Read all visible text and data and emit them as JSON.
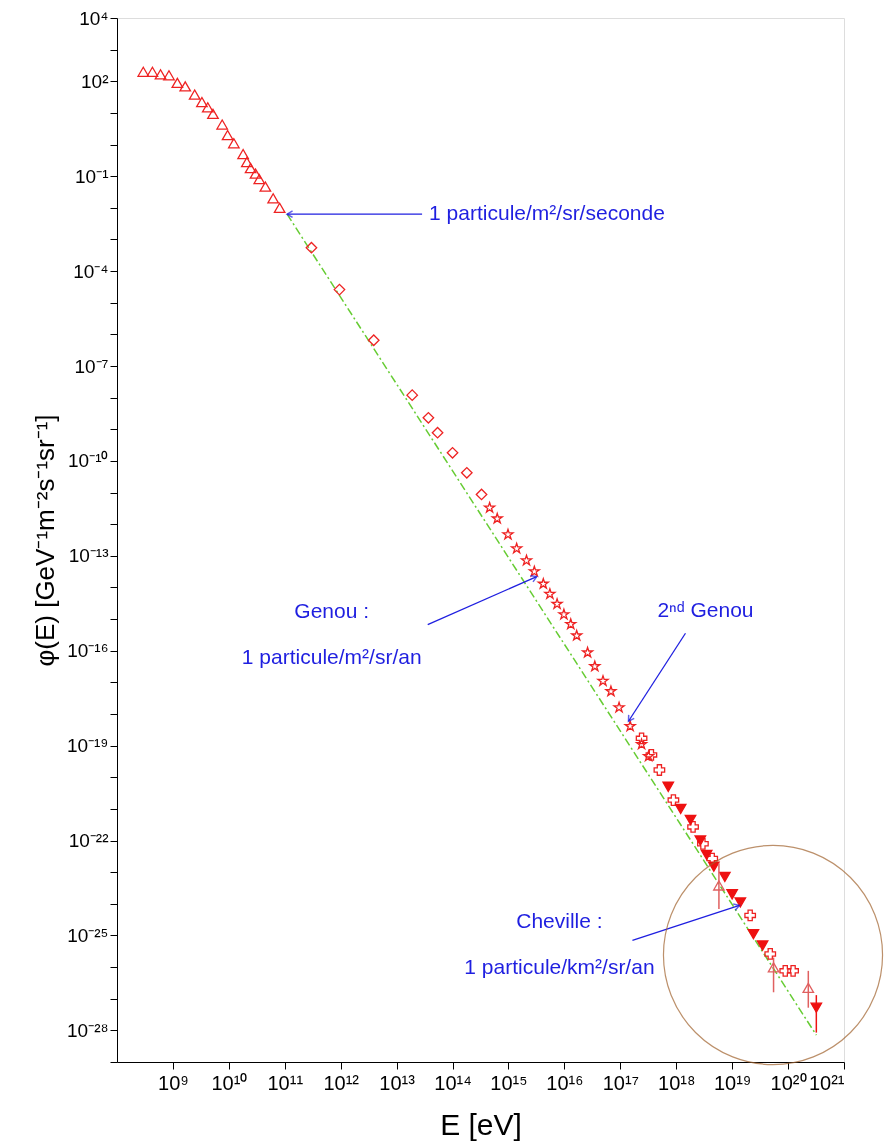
{
  "chart_data": {
    "type": "scatter",
    "xlabel": "E [eV]",
    "ylabel": "φ(E) [GeV⁻¹m⁻²s⁻¹sr⁻¹]",
    "log": "xy",
    "grid": false,
    "xlim": [
      100000000.0,
      1e+21
    ],
    "ylim": [
      1e-29,
      10000.0
    ],
    "xticks": [
      {
        "value": 1000000000.0,
        "label": "10⁹"
      },
      {
        "value": 10000000000.0,
        "label": "10¹⁰"
      },
      {
        "value": 100000000000.0,
        "label": "10¹¹"
      },
      {
        "value": 1000000000000.0,
        "label": "10¹²"
      },
      {
        "value": 10000000000000.0,
        "label": "10¹³"
      },
      {
        "value": 100000000000000.0,
        "label": "10¹⁴"
      },
      {
        "value": 1000000000000000.0,
        "label": "10¹⁵"
      },
      {
        "value": 1e+16,
        "label": "10¹⁶"
      },
      {
        "value": 1e+17,
        "label": "10¹⁷"
      },
      {
        "value": 1e+18,
        "label": "10¹⁸"
      },
      {
        "value": 1e+19,
        "label": "10¹⁹"
      },
      {
        "value": 1e+20,
        "label": "10²⁰"
      },
      {
        "value": 1e+21,
        "label": "10²¹"
      }
    ],
    "yticks": [
      {
        "value": 10000.0,
        "label": "10⁴"
      },
      {
        "value": 1000.0,
        "label": null
      },
      {
        "value": 100.0,
        "label": "10²"
      },
      {
        "value": 10.0,
        "label": null
      },
      {
        "value": 1,
        "label": null
      },
      {
        "value": 0.1,
        "label": "10⁻¹"
      },
      {
        "value": 0.01,
        "label": null
      },
      {
        "value": 0.001,
        "label": null
      },
      {
        "value": 0.0001,
        "label": "10⁻⁴"
      },
      {
        "value": 1e-05,
        "label": null
      },
      {
        "value": 1e-06,
        "label": null
      },
      {
        "value": 1e-07,
        "label": "10⁻⁷"
      },
      {
        "value": 1e-08,
        "label": null
      },
      {
        "value": 1e-09,
        "label": null
      },
      {
        "value": 1e-10,
        "label": "10⁻¹⁰"
      },
      {
        "value": 1e-11,
        "label": null
      },
      {
        "value": 1e-12,
        "label": null
      },
      {
        "value": 1e-13,
        "label": "10⁻¹³"
      },
      {
        "value": 1e-14,
        "label": null
      },
      {
        "value": 1e-15,
        "label": null
      },
      {
        "value": 1e-16,
        "label": "10⁻¹⁶"
      },
      {
        "value": 1e-17,
        "label": null
      },
      {
        "value": 1e-18,
        "label": null
      },
      {
        "value": 1e-19,
        "label": "10⁻¹⁹"
      },
      {
        "value": 1e-20,
        "label": null
      },
      {
        "value": 1e-21,
        "label": null
      },
      {
        "value": 1e-22,
        "label": "10⁻²²"
      },
      {
        "value": 1e-23,
        "label": null
      },
      {
        "value": 1e-24,
        "label": null
      },
      {
        "value": 1e-25,
        "label": "10⁻²⁵"
      },
      {
        "value": 1e-26,
        "label": null
      },
      {
        "value": 1e-27,
        "label": null
      },
      {
        "value": 1e-28,
        "label": "10⁻²⁸"
      },
      {
        "value": 1e-29,
        "label": null
      }
    ],
    "series": [
      {
        "type": "line",
        "color": "#66cc33",
        "line_style": "dashed",
        "x": [
          110000000000.0,
          3.2e+20
        ],
        "values": [
          0.0063,
          7.1e-29
        ]
      },
      {
        "color": "#ee2222",
        "marker": "triangle",
        "x": [
          295000000.0,
          430000000.0,
          600000000.0,
          850000000.0,
          1200000000.0,
          1660000000.0,
          2450000000.0,
          3300000000.0,
          4200000000.0,
          5200000000.0,
          7600000000.0,
          9500000000.0,
          12300000000.0,
          18000000000.0,
          21000000000.0,
          24500000000.0,
          30000000000.0,
          35000000000.0,
          45000000000.0,
          62000000000.0,
          81000000000.0
        ],
        "values": [
          200,
          200,
          166,
          155,
          89,
          69,
          38,
          22,
          15,
          9.3,
          4.3,
          2.0,
          1.1,
          0.5,
          0.28,
          0.18,
          0.12,
          0.081,
          0.047,
          0.02,
          0.01
        ]
      },
      {
        "color": "#ee2222",
        "marker": "diamond",
        "x": [
          300000000000.0,
          950000000000.0,
          3900000000000.0,
          19000000000000.0,
          37000000000000.0,
          54000000000000.0,
          100000000000000.0,
          180000000000000.0,
          330000000000000.0
        ],
        "values": [
          0.00055,
          2.6e-05,
          6.5e-07,
          1.2e-08,
          2.3e-09,
          7.8e-10,
          1.8e-10,
          4.2e-11,
          8.7e-12
        ]
      },
      {
        "color": "#ee2222",
        "marker": "star",
        "x": [
          460000000000000.0,
          630000000000000.0,
          980000000000000.0,
          1400000000000000.0,
          2100000000000000.0,
          2900000000000000.0,
          4200000000000000.0,
          5500000000000000.0,
          7400000000000000.0,
          9800000000000000.0,
          1.3e+16,
          1.66e+16,
          2.6e+16,
          3.5e+16,
          4.9e+16,
          6.8e+16,
          9.5e+16,
          1.5e+17,
          2.4e+17,
          3.2e+17
        ],
        "values": [
          3.3e-12,
          1.5e-12,
          4.7e-13,
          1.7e-13,
          7.1e-14,
          3.2e-14,
          1.3e-14,
          6.2e-15,
          3e-15,
          1.4e-15,
          6.9e-16,
          3e-16,
          8.7e-17,
          3.2e-17,
          1.1e-17,
          5.2e-18,
          1.6e-18,
          4.1e-19,
          1.1e-19,
          4.6e-20
        ]
      },
      {
        "color": "#ee2222",
        "marker": "cross",
        "x": [
          2.4e+17,
          3.6e+17,
          5e+17,
          8.9e+17,
          2e+18,
          3e+18,
          4.4e+18,
          2.1e+19,
          4.8e+19,
          8.9e+19,
          1.23e+20
        ],
        "values": [
          1.7e-19,
          5.1e-20,
          1.7e-20,
          1.9e-21,
          2.7e-22,
          7.9e-23,
          2.7e-23,
          4.3e-25,
          2.6e-26,
          7.6e-27,
          7.6e-27
        ]
      },
      {
        "color": "#ee1111",
        "marker": "triangle-down",
        "x": [
          7.2e+17,
          1.2e+18,
          1.8e+18,
          2.7e+18,
          3.5e+18,
          4.7e+18,
          7.4e+18,
          1e+19,
          1.4e+19,
          2.4e+19,
          3.5e+19,
          3.2e+20
        ],
        "values": [
          5e-21,
          1e-21,
          4.5e-22,
          1e-22,
          3.5e-23,
          1.5e-23,
          7.1e-24,
          2e-24,
          1.1e-24,
          1.1e-25,
          4.8e-26,
          5.2e-28
        ],
        "errors": [
          null,
          null,
          null,
          null,
          null,
          null,
          null,
          null,
          null,
          null,
          null,
          [
            8.5e-29,
            1.3e-27
          ]
        ]
      },
      {
        "color": "#e06060",
        "marker": "triangle",
        "x": [
          5.8e+18,
          5.5e+19,
          2.3e+20
        ],
        "values": [
          3.8e-24,
          9.8e-27,
          2.2e-27
        ],
        "errors": [
          [
            6.9e-25,
            1.9e-23
          ],
          [
            1.6e-27,
            2e-26
          ],
          [
            5.2e-28,
            7.6e-27
          ]
        ]
      }
    ],
    "annotations": [
      {
        "text": "1 particule/m²/sr/seconde",
        "x": 110000000000.0,
        "y": 0.0063
      },
      {
        "text": "Genou :\n1 particule/m²/sr/an",
        "x": 3200000000000000.0,
        "y": 2.2e-14
      },
      {
        "text": "2ⁿᵈ Genou",
        "x": 1.4e+17,
        "y": 5.9e-19
      },
      {
        "text": "Cheville :\n1 particule/km²/sr/an",
        "x": 1.35e+19,
        "y": 8.9e-25
      }
    ]
  }
}
